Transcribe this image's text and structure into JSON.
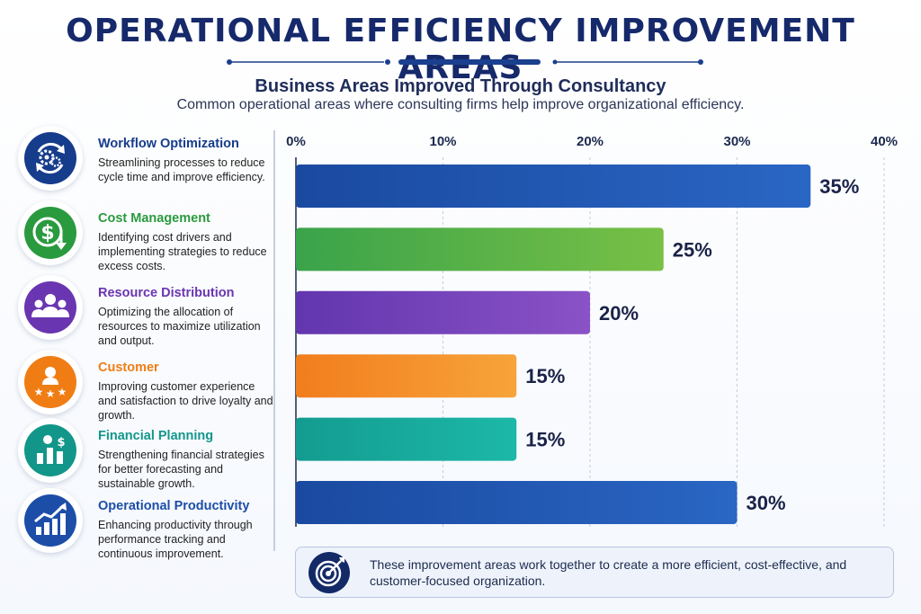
{
  "header": {
    "title": "OPERATIONAL EFFICIENCY IMPROVEMENT AREAS",
    "subtitle": "Business Areas Improved Through Consultancy",
    "description": "Common operational areas where consulting firms help improve organizational efficiency."
  },
  "areas": [
    {
      "title": "Workflow Optimization",
      "description": "Streamlining processes to reduce cycle time and improve efficiency.",
      "color": "#163c8c",
      "icon": "gears-cycle-icon"
    },
    {
      "title": "Cost Management",
      "description": "Identifying cost drivers and implementing strategies to reduce excess costs.",
      "color": "#2a9a3e",
      "icon": "dollar-down-icon"
    },
    {
      "title": "Resource Distribution",
      "description": "Optimizing the allocation of resources to maximize utilization and output.",
      "color": "#6a35b0",
      "icon": "people-group-icon"
    },
    {
      "title": "Customer",
      "description": "Improving customer experience and satisfaction to drive loyalty and growth.",
      "color": "#f07d14",
      "icon": "customer-stars-icon"
    },
    {
      "title": "Financial Planning",
      "description": "Strengthening financial strategies for better forecasting and sustainable growth.",
      "color": "#13968a",
      "icon": "finance-chart-icon"
    },
    {
      "title": "Operational Productivity",
      "description": "Enhancing productivity through performance tracking and continuous improvement.",
      "color": "#1c4ea8",
      "icon": "trend-up-chart-icon"
    }
  ],
  "chart_data": {
    "type": "bar",
    "orientation": "horizontal",
    "categories": [
      "Workflow Optimization",
      "Cost Management",
      "Resource Distribution",
      "Customer",
      "Financial Planning",
      "Operational Productivity"
    ],
    "values": [
      35,
      25,
      20,
      15,
      15,
      30
    ],
    "value_labels": [
      "35%",
      "25%",
      "20%",
      "15%",
      "15%",
      "30%"
    ],
    "xlim": [
      0,
      40
    ],
    "xticks": [
      0,
      10,
      20,
      30,
      40
    ],
    "xtick_labels": [
      "0%",
      "10%",
      "20%",
      "30%",
      "40%"
    ],
    "xaxis_position": "top",
    "grid": true,
    "bar_colors": [
      [
        "#1a4aa0",
        "#2a66c4"
      ],
      [
        "#3aa34a",
        "#78c046"
      ],
      [
        "#6236ae",
        "#8a52c6"
      ],
      [
        "#f27d1d",
        "#f7a43a"
      ],
      [
        "#139c90",
        "#1cb8a8"
      ],
      [
        "#1a4aa0",
        "#2a66c4"
      ]
    ]
  },
  "footer": {
    "text": "These improvement areas work together to create a more efficient, cost-effective, and customer-focused organization.",
    "icon": "target-icon"
  }
}
